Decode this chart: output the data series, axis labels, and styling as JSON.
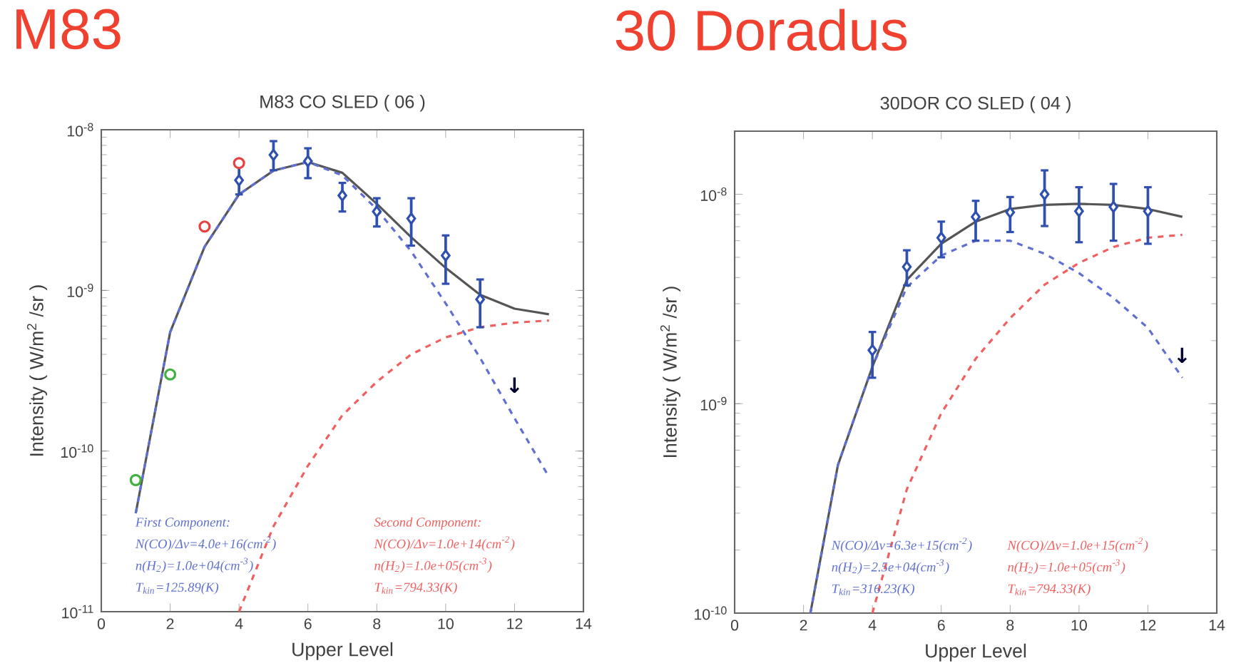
{
  "chart_data": [
    {
      "type": "scatter",
      "title": "M83",
      "subtitle": "M83 CO SLED ( 06 )",
      "xlabel": "Upper Level",
      "ylabel": "Intensity ( W/m$^{2}$ /sr )",
      "log": true,
      "grid": false,
      "xlim": [
        0,
        14
      ],
      "xticks": [
        0,
        2,
        4,
        6,
        8,
        10,
        12,
        14
      ],
      "ylim": [
        1e-11,
        1e-08
      ],
      "yticks": [
        {
          "value": 1e-11,
          "label": "10$^{-11}$"
        },
        {
          "value": 1e-10,
          "label": "10$^{-10}$"
        },
        {
          "value": 1e-09,
          "label": "10$^{-9}$"
        },
        {
          "value": 1e-08,
          "label": "10$^{-8}$"
        }
      ],
      "series": [
        {
          "type": "line",
          "color": "#555555",
          "line_style": "solid",
          "marker": "none",
          "x": [
            1,
            2,
            3,
            4,
            5,
            6,
            7,
            8,
            9,
            10,
            11,
            12,
            13
          ],
          "values": [
            4.1e-11,
            5.5e-10,
            1.87e-09,
            3.96e-09,
            5.57e-09,
            6.3e-09,
            5.4e-09,
            3.46e-09,
            2.14e-09,
            1.38e-09,
            9.4e-10,
            7.7e-10,
            7.1e-10
          ]
        },
        {
          "type": "line",
          "color": "#6070d0",
          "line_style": "dashed",
          "marker": "none",
          "x": [
            1,
            2,
            3,
            4,
            5,
            6,
            7,
            8,
            9,
            10,
            11,
            12,
            13
          ],
          "values": [
            4.1e-11,
            5.5e-10,
            1.87e-09,
            3.96e-09,
            5.57e-09,
            6.3e-09,
            5.2e-09,
            3.2e-09,
            1.75e-09,
            8.3e-10,
            3.8e-10,
            1.6e-10,
            6.9e-11
          ]
        },
        {
          "type": "line",
          "color": "#f06060",
          "line_style": "dashed",
          "marker": "none",
          "x": [
            4,
            5,
            6,
            7,
            8,
            9,
            10,
            11,
            12,
            13
          ],
          "values": [
            1e-11,
            3.4e-11,
            8.1e-11,
            1.67e-10,
            2.7e-10,
            4e-10,
            5.1e-10,
            5.9e-10,
            6.3e-10,
            6.5e-10
          ]
        },
        {
          "color": "#3050b0",
          "marker": "diamond",
          "x": [
            4,
            5,
            6,
            7,
            8,
            9,
            10,
            11
          ],
          "values": [
            4.85e-09,
            6.97e-09,
            6.38e-09,
            3.9e-09,
            3.1e-09,
            2.8e-09,
            1.65e-09,
            8.8e-10
          ],
          "errors": [
            [
              3.96e-09,
              5.96e-09
            ],
            [
              5.6e-09,
              8.5e-09
            ],
            [
              5e-09,
              7.67e-09
            ],
            [
              3.1e-09,
              4.67e-09
            ],
            [
              2.5e-09,
              3.75e-09
            ],
            [
              1.9e-09,
              3.75e-09
            ],
            [
              1.1e-09,
              2.2e-09
            ],
            [
              5.9e-10,
              1.17e-09
            ]
          ]
        },
        {
          "color": "#e84040",
          "marker": "circle",
          "x": [
            3,
            4
          ],
          "values": [
            2.5e-09,
            6.2e-09
          ]
        },
        {
          "color": "#40b040",
          "marker": "circle",
          "x": [
            1,
            2
          ],
          "values": [
            6.6e-11,
            3e-10
          ]
        }
      ],
      "annotations": [
        "First Component:",
        "N(CO)/Δv=4.0e+16(cm$^{-2}$)",
        "n(H$_{2}$)=1.0e+04(cm$^{-3}$)",
        "T$_{kin}$=125.89(K)",
        "Second Component:",
        "N(CO)/Δv=1.0e+14(cm$^{-2}$)",
        "n(H$_{2}$)=1.0e+05(cm$^{-3}$)",
        "T$_{kin}$=794.33(K)",
        "↓"
      ]
    },
    {
      "type": "scatter",
      "title": "30 Doradus",
      "subtitle": "30DOR CO SLED ( 04 )",
      "xlabel": "Upper Level",
      "ylabel": "Intensity ( W/m$^{2}$ /sr )",
      "log": true,
      "grid": false,
      "xlim": [
        0,
        14
      ],
      "xticks": [
        0,
        2,
        4,
        6,
        8,
        10,
        12,
        14
      ],
      "ylim": [
        1e-10,
        2e-08
      ],
      "yticks": [
        {
          "value": 1e-10,
          "label": "10$^{-10}$"
        },
        {
          "value": 1e-09,
          "label": "10$^{-9}$"
        },
        {
          "value": 1e-08,
          "label": "10$^{-8}$"
        }
      ],
      "series": [
        {
          "type": "line",
          "color": "#555555",
          "line_style": "solid",
          "marker": "none",
          "x": [
            2.2,
            3,
            4,
            5,
            6,
            7,
            8,
            9,
            10,
            11,
            12,
            13
          ],
          "values": [
            1e-10,
            5.1e-10,
            1.5e-09,
            3.9e-09,
            5.8e-09,
            7.4e-09,
            8.5e-09,
            8.9e-09,
            9e-09,
            8.9e-09,
            8.5e-09,
            7.8e-09
          ]
        },
        {
          "type": "line",
          "color": "#6070d0",
          "line_style": "dashed",
          "marker": "none",
          "x": [
            2.2,
            3,
            4,
            5,
            6,
            7,
            8,
            9,
            10,
            11,
            12,
            13
          ],
          "values": [
            1e-10,
            5.1e-10,
            1.5e-09,
            3.6e-09,
            5.1e-09,
            6e-09,
            6e-09,
            5.2e-09,
            4.2e-09,
            3.2e-09,
            2.3e-09,
            1.33e-09
          ]
        },
        {
          "type": "line",
          "color": "#f06060",
          "line_style": "dashed",
          "marker": "none",
          "x": [
            4,
            5,
            6,
            7,
            8,
            9,
            10,
            11,
            12,
            13
          ],
          "values": [
            1e-10,
            3.9e-10,
            9e-10,
            1.64e-09,
            2.56e-09,
            3.7e-09,
            4.7e-09,
            5.6e-09,
            6.2e-09,
            6.4e-09
          ]
        },
        {
          "color": "#3050b0",
          "marker": "diamond",
          "x": [
            4,
            5,
            6,
            7,
            8,
            9,
            10,
            11,
            12
          ],
          "values": [
            1.8e-09,
            4.5e-09,
            6.2e-09,
            7.8e-09,
            8.2e-09,
            1e-08,
            8.3e-09,
            8.7e-09,
            8.3e-09
          ],
          "errors": [
            [
              1.33e-09,
              2.2e-09
            ],
            [
              3.67e-09,
              5.4e-09
            ],
            [
              5e-09,
              7.4e-09
            ],
            [
              6e-09,
              9.3e-09
            ],
            [
              6.6e-09,
              9.7e-09
            ],
            [
              7.05e-09,
              1.3e-08
            ],
            [
              5.9e-09,
              1.08e-08
            ],
            [
              6e-09,
              1.12e-08
            ],
            [
              5.8e-09,
              1.08e-08
            ]
          ]
        }
      ],
      "annotations": [
        "N(CO)/Δv=6.3e+15(cm$^{-2}$)",
        "n(H$_{2}$)=2.5e+04(cm$^{-3}$)",
        "T$_{kin}$=316.23(K)",
        "N(CO)/Δv=1.0e+15(cm$^{-2}$)",
        "n(H$_{2}$)=1.0e+05(cm$^{-3}$)",
        "T$_{kin}$=794.33(K)",
        "↓"
      ]
    }
  ]
}
